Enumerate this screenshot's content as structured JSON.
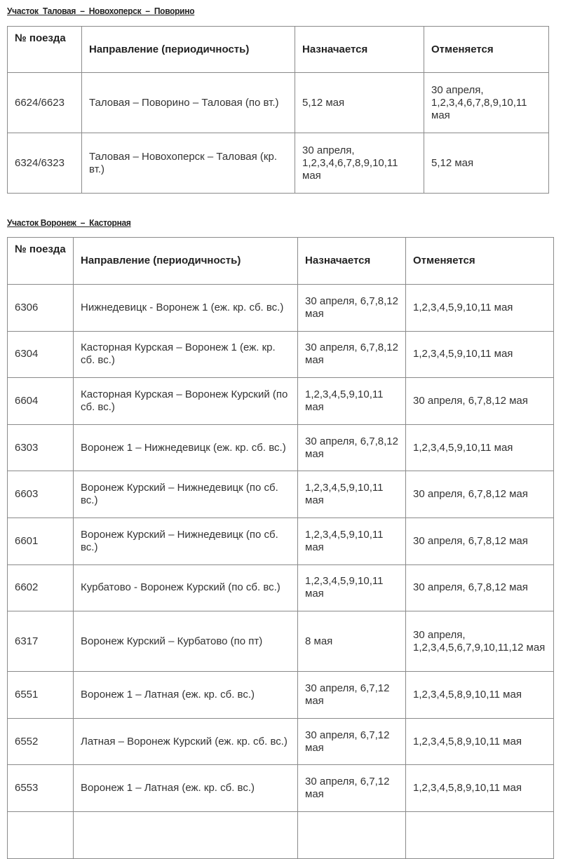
{
  "sections": [
    {
      "title": "Участок  Таловая  –  Новохоперск  –  Поворино",
      "headers": [
        "№ поезда",
        "Направление (периодичность)",
        "Назначается",
        "Отменяется"
      ],
      "rows": [
        [
          "6624/6623",
          "Таловая – Поворино – Таловая (по вт.)",
          "5,12 мая",
          "30 апреля, 1,2,3,4,6,7,8,9,10,11 мая"
        ],
        [
          "6324/6323",
          "Таловая – Новохоперск – Таловая (кр. вт.)",
          "30 апреля, 1,2,3,4,6,7,8,9,10,11 мая",
          "5,12 мая"
        ]
      ]
    },
    {
      "title": "Участок Воронеж  –  Касторная",
      "headers": [
        "№ поезда",
        "Направление (периодичность)",
        "Назначается",
        "Отменяется"
      ],
      "rows": [
        [
          "6306",
          "Нижнедевицк - Воронеж 1 (еж. кр. сб. вс.)",
          "30 апреля, 6,7,8,12 мая",
          "1,2,3,4,5,9,10,11 мая"
        ],
        [
          "6304",
          "Касторная Курская – Воронеж 1 (еж. кр. сб. вс.)",
          "30 апреля, 6,7,8,12 мая",
          "1,2,3,4,5,9,10,11 мая"
        ],
        [
          "6604",
          "Касторная Курская – Воронеж Курский (по сб. вс.)",
          "1,2,3,4,5,9,10,11 мая",
          "30 апреля, 6,7,8,12 мая"
        ],
        [
          "6303",
          "Воронеж 1 – Нижнедевицк (еж. кр. сб. вс.)",
          "30 апреля, 6,7,8,12 мая",
          "1,2,3,4,5,9,10,11 мая"
        ],
        [
          "6603",
          "Воронеж Курский – Нижнедевицк (по сб. вс.)",
          "1,2,3,4,5,9,10,11 мая",
          "30 апреля, 6,7,8,12 мая"
        ],
        [
          "6601",
          "Воронеж Курский – Нижнедевицк (по сб. вс.)",
          "1,2,3,4,5,9,10,11 мая",
          "30 апреля, 6,7,8,12 мая"
        ],
        [
          "6602",
          "Курбатово - Воронеж Курский (по сб. вс.)",
          "1,2,3,4,5,9,10,11 мая",
          "30 апреля, 6,7,8,12 мая"
        ],
        [
          "6317",
          "Воронеж Курский – Курбатово (по пт)",
          "8 мая",
          "30 апреля, 1,2,3,4,5,6,7,9,10,11,12 мая"
        ],
        [
          "6551",
          "Воронеж 1 – Латная (еж. кр. сб. вс.)",
          "30 апреля, 6,7,12 мая",
          "1,2,3,4,5,8,9,10,11 мая"
        ],
        [
          "6552",
          "Латная – Воронеж Курский (еж. кр. сб. вс.)",
          "30 апреля, 6,7,12 мая",
          "1,2,3,4,5,8,9,10,11 мая"
        ],
        [
          "6553",
          "Воронеж 1 – Латная (еж. кр. сб. вс.)",
          "30 апреля, 6,7,12 мая",
          "1,2,3,4,5,8,9,10,11 мая"
        ],
        [
          "",
          "",
          "",
          ""
        ]
      ]
    }
  ]
}
